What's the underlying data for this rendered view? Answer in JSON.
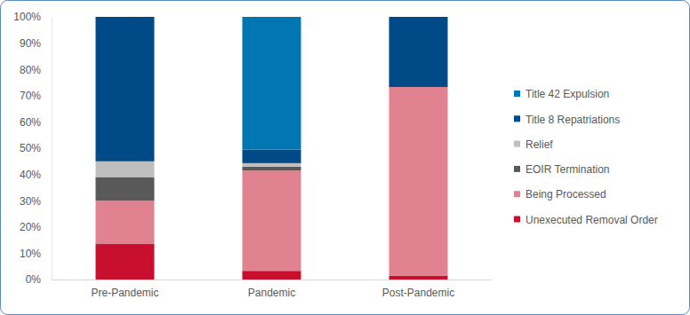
{
  "chart_data": {
    "type": "bar",
    "stacked": true,
    "legend": "right",
    "grid": false,
    "categories": [
      "Pre-Pandemic",
      "Pandemic",
      "Post-Pandemic"
    ],
    "ylim": [
      0,
      100
    ],
    "yticks": [
      {
        "value": 0,
        "label": "0%"
      },
      {
        "value": 10,
        "label": "10%"
      },
      {
        "value": 20,
        "label": "20%"
      },
      {
        "value": 30,
        "label": "30%"
      },
      {
        "value": 40,
        "label": "40%"
      },
      {
        "value": 50,
        "label": "50%"
      },
      {
        "value": 60,
        "label": "60%"
      },
      {
        "value": 70,
        "label": "70%"
      },
      {
        "value": 80,
        "label": "80%"
      },
      {
        "value": 90,
        "label": "90%"
      },
      {
        "value": 100,
        "label": "100%"
      }
    ],
    "series": [
      {
        "name": "Unexecuted Removal Order",
        "color": "#c8102e",
        "values": [
          13.5,
          3.3,
          1.5
        ]
      },
      {
        "name": "Being Processed",
        "color": "#e0828f",
        "values": [
          16.5,
          38.2,
          71.8
        ]
      },
      {
        "name": "EOIR Termination",
        "color": "#595959",
        "values": [
          9,
          1.5,
          0
        ]
      },
      {
        "name": "Relief",
        "color": "#bfbfbf",
        "values": [
          6,
          1.3,
          0
        ]
      },
      {
        "name": "Title 8 Repatriations",
        "color": "#004b87",
        "values": [
          55,
          5.2,
          26.7
        ]
      },
      {
        "name": "Title 42 Expulsion",
        "color": "#0077b3",
        "values": [
          0,
          50.5,
          0
        ]
      }
    ]
  }
}
